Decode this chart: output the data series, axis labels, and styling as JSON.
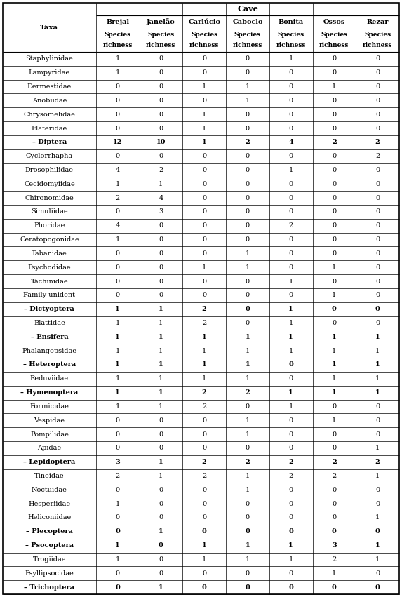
{
  "title": "Cave",
  "col_headers": [
    "Taxa",
    "Brejal",
    "Janelão",
    "Carlúcio",
    "Caboclo",
    "Bonita",
    "Ossos",
    "Rezar"
  ],
  "rows": [
    [
      "Staphylinidae",
      "1",
      "0",
      "0",
      "0",
      "1",
      "0",
      "0",
      false
    ],
    [
      "Lampyridae",
      "1",
      "0",
      "0",
      "0",
      "0",
      "0",
      "0",
      false
    ],
    [
      "Dermestidae",
      "0",
      "0",
      "1",
      "1",
      "0",
      "1",
      "0",
      false
    ],
    [
      "Anobiidae",
      "0",
      "0",
      "0",
      "1",
      "0",
      "0",
      "0",
      false
    ],
    [
      "Chrysomelidae",
      "0",
      "0",
      "1",
      "0",
      "0",
      "0",
      "0",
      false
    ],
    [
      "Elateridae",
      "0",
      "0",
      "1",
      "0",
      "0",
      "0",
      "0",
      false
    ],
    [
      "– Diptera",
      "12",
      "10",
      "1",
      "2",
      "4",
      "2",
      "2",
      true
    ],
    [
      "Cyclorrhapha",
      "0",
      "0",
      "0",
      "0",
      "0",
      "0",
      "2",
      false
    ],
    [
      "Drosophilidae",
      "4",
      "2",
      "0",
      "0",
      "1",
      "0",
      "0",
      false
    ],
    [
      "Cecidomyiidae",
      "1",
      "1",
      "0",
      "0",
      "0",
      "0",
      "0",
      false
    ],
    [
      "Chironomidae",
      "2",
      "4",
      "0",
      "0",
      "0",
      "0",
      "0",
      false
    ],
    [
      "Simuliidae",
      "0",
      "3",
      "0",
      "0",
      "0",
      "0",
      "0",
      false
    ],
    [
      "Phoridae",
      "4",
      "0",
      "0",
      "0",
      "2",
      "0",
      "0",
      false
    ],
    [
      "Ceratopogonidae",
      "1",
      "0",
      "0",
      "0",
      "0",
      "0",
      "0",
      false
    ],
    [
      "Tabanidae",
      "0",
      "0",
      "0",
      "1",
      "0",
      "0",
      "0",
      false
    ],
    [
      "Psychodidae",
      "0",
      "0",
      "1",
      "1",
      "0",
      "1",
      "0",
      false
    ],
    [
      "Tachinidae",
      "0",
      "0",
      "0",
      "0",
      "1",
      "0",
      "0",
      false
    ],
    [
      "Family unident",
      "0",
      "0",
      "0",
      "0",
      "0",
      "1",
      "0",
      false
    ],
    [
      "– Dictyoptera",
      "1",
      "1",
      "2",
      "0",
      "1",
      "0",
      "0",
      true
    ],
    [
      "Blattidae",
      "1",
      "1",
      "2",
      "0",
      "1",
      "0",
      "0",
      false
    ],
    [
      "– Ensifera",
      "1",
      "1",
      "1",
      "1",
      "1",
      "1",
      "1",
      true
    ],
    [
      "Phalangopsidae",
      "1",
      "1",
      "1",
      "1",
      "1",
      "1",
      "1",
      false
    ],
    [
      "– Heteroptera",
      "1",
      "1",
      "1",
      "1",
      "0",
      "1",
      "1",
      true
    ],
    [
      "Reduviidae",
      "1",
      "1",
      "1",
      "1",
      "0",
      "1",
      "1",
      false
    ],
    [
      "– Hymenoptera",
      "1",
      "1",
      "2",
      "2",
      "1",
      "1",
      "1",
      true
    ],
    [
      "Formicidae",
      "1",
      "1",
      "2",
      "0",
      "1",
      "0",
      "0",
      false
    ],
    [
      "Vespidae",
      "0",
      "0",
      "0",
      "1",
      "0",
      "1",
      "0",
      false
    ],
    [
      "Pompilidae",
      "0",
      "0",
      "0",
      "1",
      "0",
      "0",
      "0",
      false
    ],
    [
      "Apidae",
      "0",
      "0",
      "0",
      "0",
      "0",
      "0",
      "1",
      false
    ],
    [
      "– Lepidoptera",
      "3",
      "1",
      "2",
      "2",
      "2",
      "2",
      "2",
      true
    ],
    [
      "Tineidae",
      "2",
      "1",
      "2",
      "1",
      "2",
      "2",
      "1",
      false
    ],
    [
      "Noctuidae",
      "0",
      "0",
      "0",
      "1",
      "0",
      "0",
      "0",
      false
    ],
    [
      "Hesperiidae",
      "1",
      "0",
      "0",
      "0",
      "0",
      "0",
      "0",
      false
    ],
    [
      "Heliconiidae",
      "0",
      "0",
      "0",
      "0",
      "0",
      "0",
      "1",
      false
    ],
    [
      "– Plecoptera",
      "0",
      "1",
      "0",
      "0",
      "0",
      "0",
      "0",
      true
    ],
    [
      "– Psocoptera",
      "1",
      "0",
      "1",
      "1",
      "1",
      "3",
      "1",
      true
    ],
    [
      "Trogiidae",
      "1",
      "0",
      "1",
      "1",
      "1",
      "2",
      "1",
      false
    ],
    [
      "Psyllipsocidae",
      "0",
      "0",
      "0",
      "0",
      "0",
      "1",
      "0",
      false
    ],
    [
      "– Trichoptera",
      "0",
      "1",
      "0",
      "0",
      "0",
      "0",
      "0",
      true
    ]
  ],
  "fig_width": 5.73,
  "fig_height": 8.51,
  "dpi": 100
}
